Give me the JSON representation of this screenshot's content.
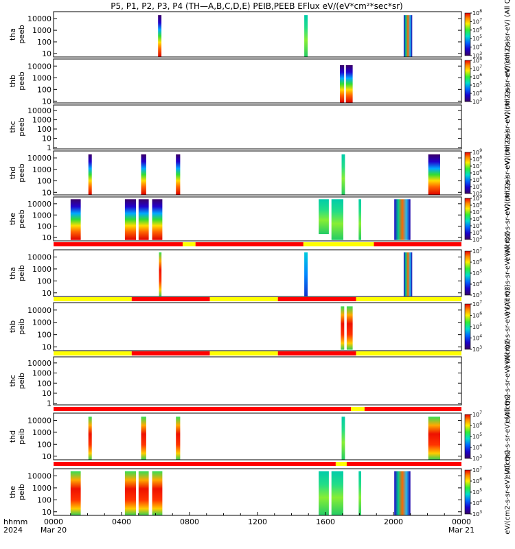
{
  "chart_data": {
    "type": "heatmap",
    "title": "P5, P1, P2, P3, P4 (TH—A,B,C,D,E) PEIB,PEEB EFlux eV/(eV*cm²*sec*sr)",
    "x_axis": {
      "prefix_top": "hhmm",
      "prefix_bottom": "2024",
      "range_hours": [
        0,
        24
      ],
      "ticks": [
        {
          "hour": 0,
          "label": "0000",
          "sub": "Mar 20"
        },
        {
          "hour": 4,
          "label": "0400",
          "sub": ""
        },
        {
          "hour": 8,
          "label": "0800",
          "sub": ""
        },
        {
          "hour": 12,
          "label": "1200",
          "sub": ""
        },
        {
          "hour": 16,
          "label": "1600",
          "sub": ""
        },
        {
          "hour": 20,
          "label": "2000",
          "sub": ""
        },
        {
          "hour": 24,
          "label": "0000",
          "sub": "Mar 21"
        }
      ]
    },
    "y_scale": "log",
    "panels": [
      {
        "id": "tha-peeb",
        "label1": "tha",
        "label2": "peeb",
        "yrange": [
          5,
          40000
        ],
        "yticks": [
          {
            "v": 10,
            "t": "10"
          },
          {
            "v": 100,
            "t": "100"
          },
          {
            "v": 1000,
            "t": "1000"
          },
          {
            "v": 10000,
            "t": "10000"
          }
        ],
        "bursts": [
          {
            "t0": 6.15,
            "t1": 6.35,
            "lo": 5,
            "hi": 20000,
            "c": "tall-dark"
          },
          {
            "t0": 14.75,
            "t1": 14.95,
            "lo": 5,
            "hi": 20000,
            "c": "green"
          },
          {
            "t0": 20.6,
            "t1": 21.1,
            "lo": 5,
            "hi": 20000,
            "c": "mixed"
          }
        ],
        "colorbar": {
          "min_exp": 3,
          "max_exp": 8,
          "label": "eV/(cm2-s-sr-eV) (All Qs)"
        }
      },
      {
        "id": "thb-peeb",
        "label1": "thb",
        "label2": "peeb",
        "yrange": [
          7,
          40000
        ],
        "yticks": [
          {
            "v": 10,
            "t": "10"
          },
          {
            "v": 100,
            "t": "100"
          },
          {
            "v": 1000,
            "t": "1000"
          },
          {
            "v": 10000,
            "t": "10000"
          }
        ],
        "bursts": [
          {
            "t0": 16.85,
            "t1": 17.1,
            "lo": 7,
            "hi": 12000,
            "c": "tall-dark"
          },
          {
            "t0": 17.2,
            "t1": 17.6,
            "lo": 7,
            "hi": 12000,
            "c": "tall-dark"
          }
        ],
        "colorbar": {
          "min_exp": 3,
          "max_exp": 8,
          "label": "eV/(cm2-s-sr-eV) (All Qs)"
        }
      },
      {
        "id": "thc-peeb",
        "label1": "thc",
        "label2": "peeb",
        "yrange": [
          0.7,
          40000
        ],
        "yticks": [
          {
            "v": 1,
            "t": "1"
          },
          {
            "v": 10,
            "t": "10"
          },
          {
            "v": 100,
            "t": "100"
          },
          {
            "v": 1000,
            "t": "1000"
          },
          {
            "v": 10000,
            "t": "10000"
          }
        ],
        "bursts": [],
        "colorbar": null,
        "side_label": "eV/(cm2-s-sr-eV) (All Qs)"
      },
      {
        "id": "thd-peeb",
        "label1": "thd",
        "label2": "peeb",
        "yrange": [
          6,
          40000
        ],
        "yticks": [
          {
            "v": 10,
            "t": "10"
          },
          {
            "v": 100,
            "t": "100"
          },
          {
            "v": 1000,
            "t": "1000"
          },
          {
            "v": 10000,
            "t": "10000"
          }
        ],
        "bursts": [
          {
            "t0": 2.05,
            "t1": 2.25,
            "lo": 6,
            "hi": 20000,
            "c": "tall-dark"
          },
          {
            "t0": 5.15,
            "t1": 5.45,
            "lo": 6,
            "hi": 20000,
            "c": "tall-dark"
          },
          {
            "t0": 7.2,
            "t1": 7.45,
            "lo": 6,
            "hi": 20000,
            "c": "tall-dark"
          },
          {
            "t0": 16.95,
            "t1": 17.15,
            "lo": 6,
            "hi": 20000,
            "c": "green"
          },
          {
            "t0": 22.05,
            "t1": 22.75,
            "lo": 6,
            "hi": 20000,
            "c": "tall-dark"
          }
        ],
        "colorbar": {
          "min_exp": 3,
          "max_exp": 9,
          "label": "eV/(cm2-s-sr-eV) (All Qs)"
        }
      },
      {
        "id": "the-peeb",
        "label1": "the",
        "label2": "peeb",
        "yrange": [
          5,
          40000
        ],
        "yticks": [
          {
            "v": 10,
            "t": "10"
          },
          {
            "v": 100,
            "t": "100"
          },
          {
            "v": 1000,
            "t": "1000"
          },
          {
            "v": 10000,
            "t": "10000"
          }
        ],
        "bursts": [
          {
            "t0": 1.0,
            "t1": 1.6,
            "lo": 6,
            "hi": 25000,
            "c": "tall-dark"
          },
          {
            "t0": 4.2,
            "t1": 4.85,
            "lo": 6,
            "hi": 25000,
            "c": "tall-dark"
          },
          {
            "t0": 5.0,
            "t1": 5.6,
            "lo": 6,
            "hi": 25000,
            "c": "tall-dark"
          },
          {
            "t0": 5.8,
            "t1": 6.4,
            "lo": 6,
            "hi": 25000,
            "c": "tall-dark"
          },
          {
            "t0": 15.6,
            "t1": 16.2,
            "lo": 20,
            "hi": 25000,
            "c": "green"
          },
          {
            "t0": 16.35,
            "t1": 17.05,
            "lo": 6,
            "hi": 25000,
            "c": "green"
          },
          {
            "t0": 17.95,
            "t1": 18.1,
            "lo": 6,
            "hi": 25000,
            "c": "green"
          },
          {
            "t0": 20.05,
            "t1": 21.0,
            "lo": 6,
            "hi": 25000,
            "c": "mixed"
          }
        ],
        "colorbar": {
          "min_exp": 3,
          "max_exp": 9,
          "label": "eV/(cm2-s-sr-eV) (All Qs)"
        }
      },
      {
        "id": "tha-peib",
        "label1": "tha",
        "label2": "peib",
        "yrange": [
          5,
          40000
        ],
        "yticks": [
          {
            "v": 10,
            "t": "10"
          },
          {
            "v": 100,
            "t": "100"
          },
          {
            "v": 1000,
            "t": "1000"
          },
          {
            "v": 10000,
            "t": "10000"
          }
        ],
        "bursts": [
          {
            "t0": 6.2,
            "t1": 6.35,
            "lo": 5,
            "hi": 25000,
            "c": "tall-red"
          },
          {
            "t0": 14.75,
            "t1": 14.95,
            "lo": 5,
            "hi": 25000,
            "c": "blue"
          },
          {
            "t0": 20.6,
            "t1": 21.1,
            "lo": 5,
            "hi": 25000,
            "c": "mixed"
          }
        ],
        "colorbar": {
          "min_exp": 3,
          "max_exp": 7,
          "label": "eV/(cm2-s-sr-eV) (All Qs)"
        }
      },
      {
        "id": "thb-peib",
        "label1": "thb",
        "label2": "peib",
        "yrange": [
          5,
          40000
        ],
        "yticks": [
          {
            "v": 10,
            "t": "10"
          },
          {
            "v": 100,
            "t": "100"
          },
          {
            "v": 1000,
            "t": "1000"
          },
          {
            "v": 10000,
            "t": "10000"
          }
        ],
        "bursts": [
          {
            "t0": 16.9,
            "t1": 17.1,
            "lo": 6,
            "hi": 20000,
            "c": "tall-red"
          },
          {
            "t0": 17.25,
            "t1": 17.6,
            "lo": 6,
            "hi": 20000,
            "c": "tall-red"
          }
        ],
        "colorbar": {
          "min_exp": 3,
          "max_exp": 7,
          "label": "eV/(cm2-s-sr-eV) (All Qs)"
        }
      },
      {
        "id": "thc-peib",
        "label1": "thc",
        "label2": "peib",
        "yrange": [
          0.7,
          40000
        ],
        "yticks": [
          {
            "v": 1,
            "t": "1"
          },
          {
            "v": 10,
            "t": "10"
          },
          {
            "v": 100,
            "t": "100"
          },
          {
            "v": 1000,
            "t": "1000"
          },
          {
            "v": 10000,
            "t": "10000"
          }
        ],
        "bursts": [],
        "colorbar": null,
        "side_label": "eV/(cm2-s-sr-eV) (All Qs)"
      },
      {
        "id": "thd-peib",
        "label1": "thd",
        "label2": "peib",
        "yrange": [
          5,
          40000
        ],
        "yticks": [
          {
            "v": 10,
            "t": "10"
          },
          {
            "v": 100,
            "t": "100"
          },
          {
            "v": 1000,
            "t": "1000"
          },
          {
            "v": 10000,
            "t": "10000"
          }
        ],
        "bursts": [
          {
            "t0": 2.05,
            "t1": 2.25,
            "lo": 5,
            "hi": 20000,
            "c": "tall-red"
          },
          {
            "t0": 5.15,
            "t1": 5.45,
            "lo": 5,
            "hi": 20000,
            "c": "tall-red"
          },
          {
            "t0": 7.2,
            "t1": 7.45,
            "lo": 5,
            "hi": 20000,
            "c": "tall-red"
          },
          {
            "t0": 16.95,
            "t1": 17.15,
            "lo": 5,
            "hi": 20000,
            "c": "green"
          },
          {
            "t0": 22.05,
            "t1": 22.75,
            "lo": 5,
            "hi": 20000,
            "c": "tall-red"
          }
        ],
        "colorbar": {
          "min_exp": 3,
          "max_exp": 7,
          "label": "eV/(cm2-s-sr-eV) (All Qs)"
        }
      },
      {
        "id": "the-peib",
        "label1": "the",
        "label2": "peib",
        "yrange": [
          5,
          40000
        ],
        "yticks": [
          {
            "v": 10,
            "t": "10"
          },
          {
            "v": 100,
            "t": "100"
          },
          {
            "v": 1000,
            "t": "1000"
          },
          {
            "v": 10000,
            "t": "10000"
          }
        ],
        "bursts": [
          {
            "t0": 1.0,
            "t1": 1.6,
            "lo": 5,
            "hi": 25000,
            "c": "tall-red"
          },
          {
            "t0": 4.2,
            "t1": 4.85,
            "lo": 5,
            "hi": 25000,
            "c": "tall-red"
          },
          {
            "t0": 5.0,
            "t1": 5.6,
            "lo": 5,
            "hi": 25000,
            "c": "tall-red"
          },
          {
            "t0": 5.8,
            "t1": 6.4,
            "lo": 5,
            "hi": 25000,
            "c": "tall-red"
          },
          {
            "t0": 15.6,
            "t1": 16.2,
            "lo": 5,
            "hi": 25000,
            "c": "green"
          },
          {
            "t0": 16.35,
            "t1": 17.05,
            "lo": 5,
            "hi": 25000,
            "c": "green"
          },
          {
            "t0": 17.95,
            "t1": 18.1,
            "lo": 5,
            "hi": 25000,
            "c": "green"
          },
          {
            "t0": 20.05,
            "t1": 21.0,
            "lo": 5,
            "hi": 25000,
            "c": "mixed"
          }
        ],
        "colorbar": {
          "min_exp": 3,
          "max_exp": 7,
          "label": "eV/(cm2-s-sr-eV) (All Qs)"
        }
      }
    ],
    "mode_bars": [
      {
        "after_panel": "the-peeb",
        "segments": [
          {
            "t0": 0,
            "t1": 7.6,
            "c": "#ff0000"
          },
          {
            "t0": 7.6,
            "t1": 8.35,
            "c": "#ffff00"
          },
          {
            "t0": 8.35,
            "t1": 14.7,
            "c": "#ff0000"
          },
          {
            "t0": 14.7,
            "t1": 18.85,
            "c": "#ffff00"
          },
          {
            "t0": 18.85,
            "t1": 24,
            "c": "#ff0000"
          }
        ]
      },
      {
        "after_panel": "tha-peib",
        "segments": [
          {
            "t0": 0,
            "t1": 4.6,
            "c": "#ffff00"
          },
          {
            "t0": 4.6,
            "t1": 9.2,
            "c": "#ff0000"
          },
          {
            "t0": 9.2,
            "t1": 13.2,
            "c": "#ffff00"
          },
          {
            "t0": 13.2,
            "t1": 17.8,
            "c": "#ff0000"
          },
          {
            "t0": 17.8,
            "t1": 24,
            "c": "#ffff00"
          }
        ]
      },
      {
        "after_panel": "thb-peib",
        "segments": [
          {
            "t0": 0,
            "t1": 4.6,
            "c": "#ffff00"
          },
          {
            "t0": 4.6,
            "t1": 9.2,
            "c": "#ff0000"
          },
          {
            "t0": 9.2,
            "t1": 13.2,
            "c": "#ffff00"
          },
          {
            "t0": 13.2,
            "t1": 17.8,
            "c": "#ff0000"
          },
          {
            "t0": 17.8,
            "t1": 24,
            "c": "#ffff00"
          }
        ]
      },
      {
        "after_panel": "thc-peib",
        "segments": [
          {
            "t0": 0,
            "t1": 17.5,
            "c": "#ff0000"
          },
          {
            "t0": 17.5,
            "t1": 18.3,
            "c": "#ffff00"
          },
          {
            "t0": 18.3,
            "t1": 24,
            "c": "#ff0000"
          }
        ]
      },
      {
        "after_panel": "thd-peib",
        "segments": [
          {
            "t0": 0,
            "t1": 16.6,
            "c": "#ff0000"
          },
          {
            "t0": 16.6,
            "t1": 17.25,
            "c": "#ffff00"
          },
          {
            "t0": 17.25,
            "t1": 24,
            "c": "#ff0000"
          }
        ]
      }
    ]
  }
}
